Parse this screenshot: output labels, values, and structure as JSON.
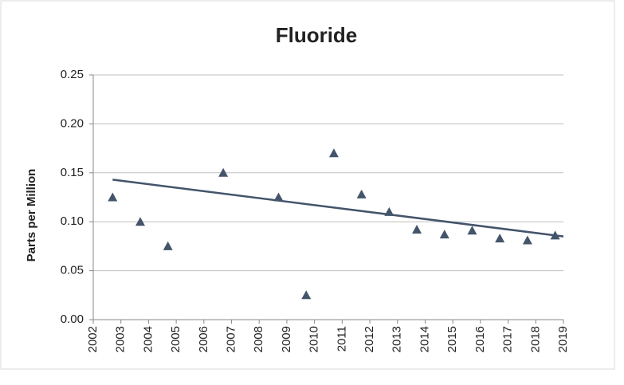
{
  "chart_data": {
    "type": "scatter",
    "title": "Fluoride",
    "y_label": "Parts per Million",
    "x": [
      2002.7,
      2003.7,
      2004.7,
      2006.7,
      2008.7,
      2009.7,
      2010.7,
      2011.7,
      2012.7,
      2013.7,
      2014.7,
      2015.7,
      2016.7,
      2017.7,
      2018.7
    ],
    "values": [
      0.125,
      0.1,
      0.075,
      0.15,
      0.125,
      0.025,
      0.17,
      0.128,
      0.11,
      0.092,
      0.087,
      0.091,
      0.083,
      0.081,
      0.086
    ],
    "color": "#44546a",
    "trend": {
      "x": [
        2002.7,
        2019
      ],
      "values": [
        0.143,
        0.085
      ],
      "color": "#44546a"
    },
    "xlim": [
      2002,
      2019
    ],
    "xticks": [
      2002,
      2003,
      2004,
      2005,
      2006,
      2007,
      2008,
      2009,
      2010,
      2011,
      2012,
      2013,
      2014,
      2015,
      2016,
      2017,
      2018,
      2019
    ],
    "ylim": [
      0,
      0.25
    ],
    "yticks": [
      {
        "value": 0,
        "label": "0.00"
      },
      {
        "value": 0.05,
        "label": "0.05"
      },
      {
        "value": 0.1,
        "label": "0.10"
      },
      {
        "value": 0.15,
        "label": "0.15"
      },
      {
        "value": 0.2,
        "label": "0.20"
      },
      {
        "value": 0.25,
        "label": "0.25"
      }
    ],
    "grid": true
  }
}
